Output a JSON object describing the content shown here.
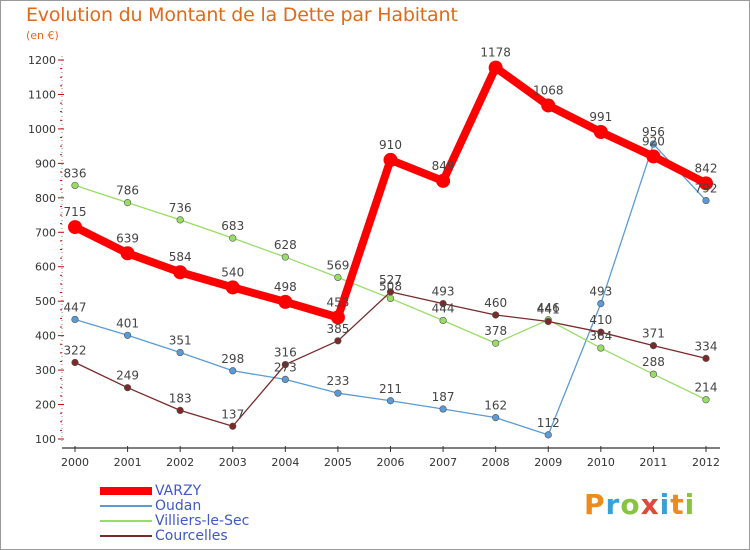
{
  "header": {
    "title": "Evolution du Montant de la Dette par Habitant",
    "subtitle": "(en €)"
  },
  "logo": {
    "text": "Proxiti"
  },
  "chart_data": {
    "type": "line",
    "title": "Evolution du Montant de la Dette par Habitant",
    "subtitle": "(en €)",
    "xlabel": "",
    "ylabel": "",
    "x": [
      "2000",
      "2001",
      "2002",
      "2003",
      "2004",
      "2005",
      "2006",
      "2007",
      "2008",
      "2009",
      "2010",
      "2011",
      "2012"
    ],
    "ylim": [
      100,
      1200
    ],
    "yticks": [
      100,
      200,
      300,
      400,
      500,
      600,
      700,
      800,
      900,
      1000,
      1100,
      1200
    ],
    "grid": false,
    "legend_position": "bottom-left",
    "series": [
      {
        "name": "VARZY",
        "color": "#ff0000",
        "emphasis": true,
        "values": [
          715,
          639,
          584,
          540,
          498,
          453,
          910,
          849,
          1178,
          1068,
          991,
          920,
          842
        ]
      },
      {
        "name": "Oudan",
        "color": "#5b9bd5",
        "values": [
          447,
          401,
          351,
          298,
          273,
          233,
          211,
          187,
          162,
          112,
          493,
          956,
          792
        ]
      },
      {
        "name": "Villiers-le-Sec",
        "color": "#99dd66",
        "values": [
          836,
          786,
          736,
          683,
          628,
          569,
          508,
          444,
          378,
          446,
          364,
          288,
          214
        ]
      },
      {
        "name": "Courcelles",
        "color": "#7a2a2a",
        "values": [
          322,
          249,
          183,
          137,
          316,
          385,
          527,
          493,
          460,
          441,
          410,
          371,
          334
        ]
      }
    ]
  }
}
